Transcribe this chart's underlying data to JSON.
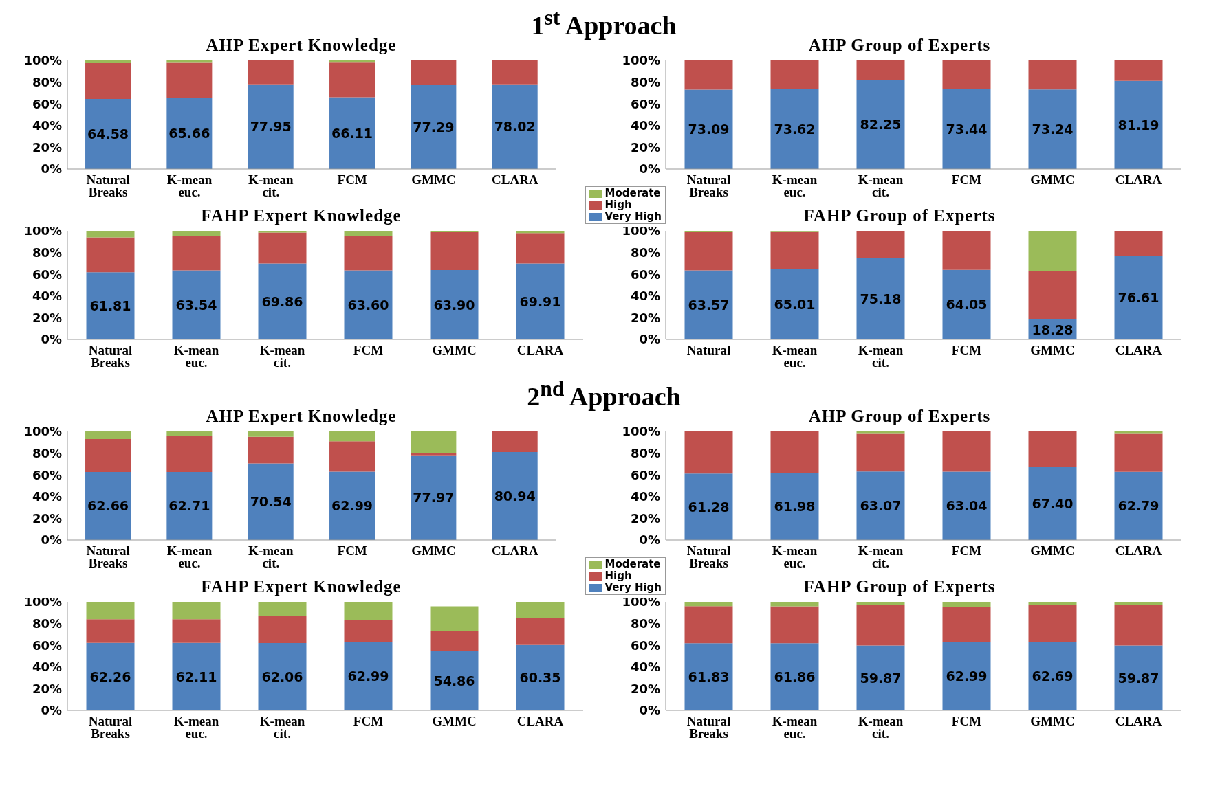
{
  "chart_data": [
    {
      "type": "other",
      "title": "1$^{st}$ Approach"
    },
    {
      "type": "bar",
      "title": "AHP Expert Knowledge",
      "stacked": true,
      "legend": "bottom right",
      "categories": [
        "Natural Breaks",
        "K-mean euc.",
        "K-mean cit.",
        "FCM",
        "GMMC",
        "CLARA"
      ],
      "ylim": [
        0,
        100
      ],
      "yticks": [
        {
          "value": 0,
          "label": "0%"
        },
        {
          "value": 20,
          "label": "20%"
        },
        {
          "value": 40,
          "label": "40%"
        },
        {
          "value": 60,
          "label": "60%"
        },
        {
          "value": 80,
          "label": "80%"
        },
        {
          "value": 100,
          "label": "100%"
        }
      ],
      "series": [
        {
          "name": "Very High",
          "color": "#4f81bd",
          "values": [
            64.58,
            65.66,
            77.95,
            66.11,
            77.29,
            78.02
          ],
          "value_labels": [
            "64.58",
            "65.66",
            "77.95",
            "66.11",
            "77.29",
            "78.02"
          ]
        },
        {
          "name": "High",
          "color": "#c0504d",
          "values": [
            32.9,
            32.8,
            22,
            32.4,
            22.7,
            22
          ]
        },
        {
          "name": "Moderate",
          "color": "#9bbb59",
          "values": [
            2.5,
            1.5,
            0,
            1.5,
            0,
            0
          ]
        }
      ]
    },
    {
      "type": "bar",
      "title": "AHP Group of Experts",
      "stacked": true,
      "categories": [
        "Natural Breaks",
        "K-mean euc.",
        "K-mean cit.",
        "FCM",
        "GMMC",
        "CLARA"
      ],
      "ylim": [
        0,
        100
      ],
      "yticks": [
        {
          "value": 0,
          "label": "0%"
        },
        {
          "value": 20,
          "label": "20%"
        },
        {
          "value": 40,
          "label": "40%"
        },
        {
          "value": 60,
          "label": "60%"
        },
        {
          "value": 80,
          "label": "80%"
        },
        {
          "value": 100,
          "label": "100%"
        }
      ],
      "series": [
        {
          "color": "#4f81bd",
          "values": [
            73.09,
            73.62,
            82.25,
            73.44,
            73.24,
            81.19
          ],
          "value_labels": [
            "73.09",
            "73.62",
            "82.25",
            "73.44",
            "73.24",
            "81.19"
          ]
        },
        {
          "color": "#c0504d",
          "values": [
            26.9,
            26.4,
            17.8,
            26.6,
            26.8,
            18.8
          ]
        }
      ]
    },
    {
      "type": "bar",
      "title": "FAHP Expert Knowledge",
      "stacked": true,
      "categories": [
        "Natural Breaks",
        "K-mean euc.",
        "K-mean cit.",
        "FCM",
        "GMMC",
        "CLARA"
      ],
      "ylim": [
        0,
        100
      ],
      "yticks": [
        {
          "value": 0,
          "label": "0%"
        },
        {
          "value": 20,
          "label": "20%"
        },
        {
          "value": 40,
          "label": "40%"
        },
        {
          "value": 60,
          "label": "60%"
        },
        {
          "value": 80,
          "label": "80%"
        },
        {
          "value": 100,
          "label": "100%"
        }
      ],
      "series": [
        {
          "color": "#4f81bd",
          "values": [
            61.81,
            63.54,
            69.86,
            63.6,
            63.9,
            69.91
          ],
          "value_labels": [
            "61.81",
            "63.54",
            "69.86",
            "63.60",
            "63.90",
            "69.91"
          ]
        },
        {
          "color": "#c0504d",
          "values": [
            32.2,
            32,
            28.6,
            31.9,
            35.1,
            28.1
          ]
        },
        {
          "color": "#9bbb59",
          "values": [
            6,
            4.5,
            1.5,
            4.5,
            1,
            2
          ]
        }
      ]
    },
    {
      "type": "bar",
      "title": "FAHP Group of Experts",
      "stacked": true,
      "categories": [
        "Natural",
        "K-mean euc.",
        "K-mean cit.",
        "FCM",
        "GMMC",
        "CLARA"
      ],
      "ylim": [
        0,
        100
      ],
      "yticks": [
        {
          "value": 0,
          "label": "0%"
        },
        {
          "value": 20,
          "label": "20%"
        },
        {
          "value": 40,
          "label": "40%"
        },
        {
          "value": 60,
          "label": "60%"
        },
        {
          "value": 80,
          "label": "80%"
        },
        {
          "value": 100,
          "label": "100%"
        }
      ],
      "series": [
        {
          "color": "#4f81bd",
          "values": [
            63.57,
            65.01,
            75.18,
            64.05,
            18.28,
            76.61
          ],
          "value_labels": [
            "63.57",
            "65.01",
            "75.18",
            "64.05",
            "18.28",
            "76.61"
          ]
        },
        {
          "color": "#c0504d",
          "values": [
            35.4,
            34.5,
            24.8,
            36,
            44.7,
            23.4
          ]
        },
        {
          "color": "#9bbb59",
          "values": [
            1,
            0.5,
            0,
            0,
            37,
            0
          ]
        }
      ]
    },
    {
      "type": "other",
      "title": "2$^{nd}$ Approach"
    },
    {
      "type": "bar",
      "title": "AHP Expert Knowledge",
      "stacked": true,
      "legend": "bottom right",
      "categories": [
        "Natural Breaks",
        "K-mean euc.",
        "K-mean cit.",
        "FCM",
        "GMMC",
        "CLARA"
      ],
      "ylim": [
        0,
        100
      ],
      "yticks": [
        {
          "value": 0,
          "label": "0%"
        },
        {
          "value": 20,
          "label": "20%"
        },
        {
          "value": 40,
          "label": "40%"
        },
        {
          "value": 60,
          "label": "60%"
        },
        {
          "value": 80,
          "label": "80%"
        },
        {
          "value": 100,
          "label": "100%"
        }
      ],
      "series": [
        {
          "name": "Very High",
          "color": "#4f81bd",
          "values": [
            62.66,
            62.71,
            70.54,
            62.99,
            77.97,
            80.94
          ],
          "value_labels": [
            "62.66",
            "62.71",
            "70.54",
            "62.99",
            "77.97",
            "80.94"
          ]
        },
        {
          "name": "High",
          "color": "#c0504d",
          "values": [
            30.3,
            33.3,
            24.5,
            28,
            2,
            19.1
          ]
        },
        {
          "name": "Moderate",
          "color": "#9bbb59",
          "values": [
            7,
            4,
            5,
            9,
            20,
            0
          ]
        }
      ]
    },
    {
      "type": "bar",
      "title": "AHP Group of Experts",
      "stacked": true,
      "categories": [
        "Natural Breaks",
        "K-mean euc.",
        "K-mean cit.",
        "FCM",
        "GMMC",
        "CLARA"
      ],
      "ylim": [
        0,
        100
      ],
      "yticks": [
        {
          "value": 0,
          "label": "0%"
        },
        {
          "value": 20,
          "label": "20%"
        },
        {
          "value": 40,
          "label": "40%"
        },
        {
          "value": 60,
          "label": "60%"
        },
        {
          "value": 80,
          "label": "80%"
        },
        {
          "value": 100,
          "label": "100%"
        }
      ],
      "series": [
        {
          "color": "#4f81bd",
          "values": [
            61.28,
            61.98,
            63.07,
            63.04,
            67.4,
            62.79
          ],
          "value_labels": [
            "61.28",
            "61.98",
            "63.07",
            "63.04",
            "67.40",
            "62.79"
          ]
        },
        {
          "color": "#c0504d",
          "values": [
            38.7,
            38,
            35.4,
            37,
            32.6,
            35.7
          ]
        },
        {
          "color": "#9bbb59",
          "values": [
            0,
            0,
            1.5,
            0,
            0,
            1.5
          ]
        }
      ]
    },
    {
      "type": "bar",
      "title": "FAHP Expert Knowledge",
      "stacked": true,
      "categories": [
        "Natural Breaks",
        "K-mean euc.",
        "K-mean cit.",
        "FCM",
        "GMMC",
        "CLARA"
      ],
      "ylim": [
        0,
        100
      ],
      "yticks": [
        {
          "value": 0,
          "label": "0%"
        },
        {
          "value": 20,
          "label": "20%"
        },
        {
          "value": 40,
          "label": "40%"
        },
        {
          "value": 60,
          "label": "60%"
        },
        {
          "value": 80,
          "label": "80%"
        },
        {
          "value": 100,
          "label": "100%"
        }
      ],
      "series": [
        {
          "color": "#4f81bd",
          "values": [
            62.26,
            62.11,
            62.06,
            62.99,
            54.86,
            60.35
          ],
          "value_labels": [
            "62.26",
            "62.11",
            "62.06",
            "62.99",
            "54.86",
            "60.35"
          ]
        },
        {
          "color": "#c0504d",
          "values": [
            21.7,
            21.9,
            24.9,
            20.5,
            18.1,
            25.1
          ]
        },
        {
          "color": "#9bbb59",
          "values": [
            16,
            16,
            13,
            16.5,
            23,
            14.5
          ]
        }
      ]
    },
    {
      "type": "bar",
      "title": "FAHP Group of Experts",
      "stacked": true,
      "categories": [
        "Natural Breaks",
        "K-mean euc.",
        "K-mean cit.",
        "FCM",
        "GMMC",
        "CLARA"
      ],
      "ylim": [
        0,
        100
      ],
      "yticks": [
        {
          "value": 0,
          "label": "0%"
        },
        {
          "value": 20,
          "label": "20%"
        },
        {
          "value": 40,
          "label": "40%"
        },
        {
          "value": 60,
          "label": "60%"
        },
        {
          "value": 80,
          "label": "80%"
        },
        {
          "value": 100,
          "label": "100%"
        }
      ],
      "series": [
        {
          "color": "#4f81bd",
          "values": [
            61.83,
            61.86,
            59.87,
            62.99,
            62.69,
            59.87
          ],
          "value_labels": [
            "61.83",
            "61.86",
            "59.87",
            "62.99",
            "62.69",
            "59.87"
          ]
        },
        {
          "color": "#c0504d",
          "values": [
            34.2,
            34.1,
            37.1,
            32,
            34.8,
            37.1
          ]
        },
        {
          "color": "#9bbb59",
          "values": [
            4,
            4,
            3,
            5,
            2.5,
            3
          ]
        }
      ]
    }
  ]
}
